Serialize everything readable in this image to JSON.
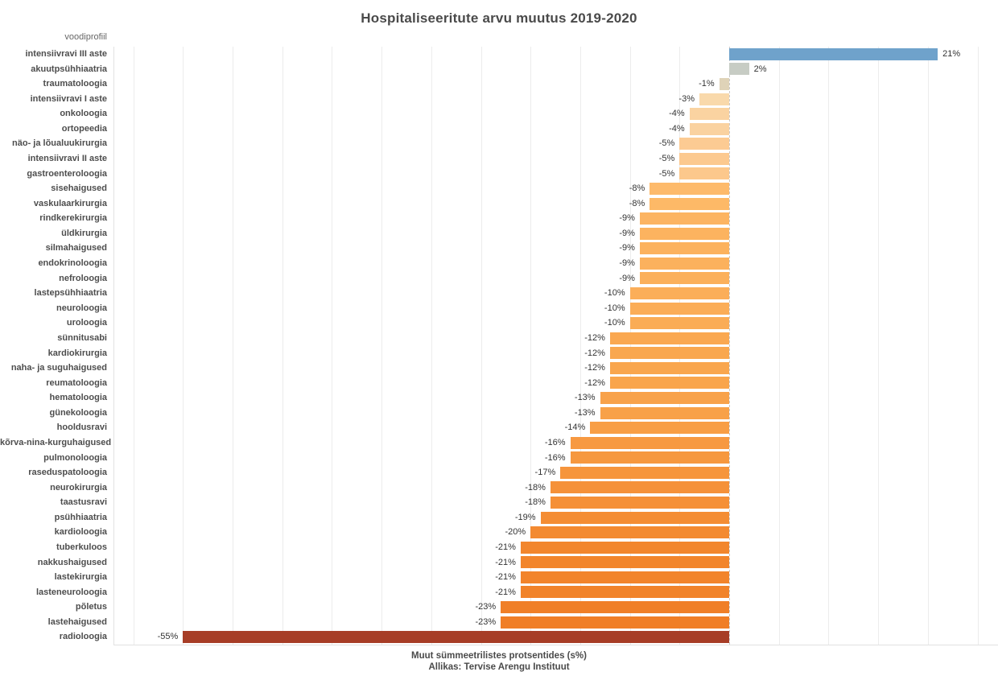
{
  "title": "Hospitaliseeritute arvu muutus 2019-2020",
  "y_axis_header": "voodiprofiil",
  "footer": {
    "xlabel": "Muut sümmeetrilistes protsentides (s%)",
    "source": "Allikas: Tervise Arengu Instituut"
  },
  "colors": {
    "positive_bar": "#6FA2CB",
    "neutral_bar": "#C7CCC4",
    "max_negative_bar": "#A73D26",
    "gridline": "#ececec",
    "zero_line": "#c9c9c9",
    "text": "#4d4d4d"
  },
  "chart_data": {
    "type": "bar",
    "orientation": "horizontal",
    "title": "Hospitaliseeritute arvu muutus 2019-2020",
    "xlabel": "Muut sümmeetrilistes protsentides (s%)",
    "ylabel": "voodiprofiil",
    "source": "Allikas: Tervise Arengu Instituut",
    "xlim": [
      -62,
      27
    ],
    "grid_step": 5,
    "grid": true,
    "legend_position": "none",
    "zero_line_style": "dashed",
    "categories": [
      "intensiivravi III aste",
      "akuutpsühhiaatria",
      "traumatoloogia",
      "intensiivravi I aste",
      "onkoloogia",
      "ortopeedia",
      "näo- ja lõualuukirurgia",
      "intensiivravi II aste",
      "gastroenteroloogia",
      "sisehaigused",
      "vaskulaarkirurgia",
      "rindkerekirurgia",
      "üldkirurgia",
      "silmahaigused",
      "endokrinoloogia",
      "nefroloogia",
      "lastepsühhiaatria",
      "neuroloogia",
      "uroloogia",
      "sünnitusabi",
      "kardiokirurgia",
      "naha- ja suguhaigused",
      "reumatoloogia",
      "hematoloogia",
      "günekoloogia",
      "hooldusravi",
      "kõrva-nina-kurguhaigused",
      "pulmonoloogia",
      "raseduspatoloogia",
      "neurokirurgia",
      "taastusravi",
      "psühhiaatria",
      "kardioloogia",
      "tuberkuloos",
      "nakkushaigused",
      "lastekirurgia",
      "lasteneuroloogia",
      "põletus",
      "lastehaigused",
      "radioloogia"
    ],
    "values": [
      21,
      2,
      -1,
      -3,
      -4,
      -4,
      -5,
      -5,
      -5,
      -8,
      -8,
      -9,
      -9,
      -9,
      -9,
      -9,
      -10,
      -10,
      -10,
      -12,
      -12,
      -12,
      -12,
      -13,
      -13,
      -14,
      -16,
      -16,
      -17,
      -18,
      -18,
      -19,
      -20,
      -21,
      -21,
      -21,
      -21,
      -23,
      -23,
      -55
    ],
    "value_labels": [
      "21%",
      "2%",
      "-1%",
      "-3%",
      "-4%",
      "-4%",
      "-5%",
      "-5%",
      "-5%",
      "-8%",
      "-8%",
      "-9%",
      "-9%",
      "-9%",
      "-9%",
      "-9%",
      "-10%",
      "-10%",
      "-10%",
      "-12%",
      "-12%",
      "-12%",
      "-12%",
      "-13%",
      "-13%",
      "-14%",
      "-16%",
      "-16%",
      "-17%",
      "-18%",
      "-18%",
      "-19%",
      "-20%",
      "-21%",
      "-21%",
      "-21%",
      "-21%",
      "-23%",
      "-23%",
      "-55%"
    ],
    "bar_colors": [
      "#6FA2CB",
      "#C7CCC4",
      "#DFD3B8",
      "#F9D9AB",
      "#FAD3A1",
      "#FAD2A0",
      "#FCCB93",
      "#FCC98F",
      "#FCC88C",
      "#FDBA6B",
      "#FDB967",
      "#FCB462",
      "#FCB35F",
      "#FCB25E",
      "#FBB15D",
      "#FBB05B",
      "#FBAE59",
      "#FBAD57",
      "#FAAC56",
      "#FAA851",
      "#F9A74F",
      "#F9A64E",
      "#F9A54C",
      "#F8A24A",
      "#F8A148",
      "#F89E45",
      "#F79941",
      "#F6983F",
      "#F6953C",
      "#F59139",
      "#F59037",
      "#F48D34",
      "#F38A31",
      "#F2862D",
      "#F2852C",
      "#F2842B",
      "#F1832A",
      "#F07F27",
      "#F07E26",
      "#A73D26"
    ]
  }
}
